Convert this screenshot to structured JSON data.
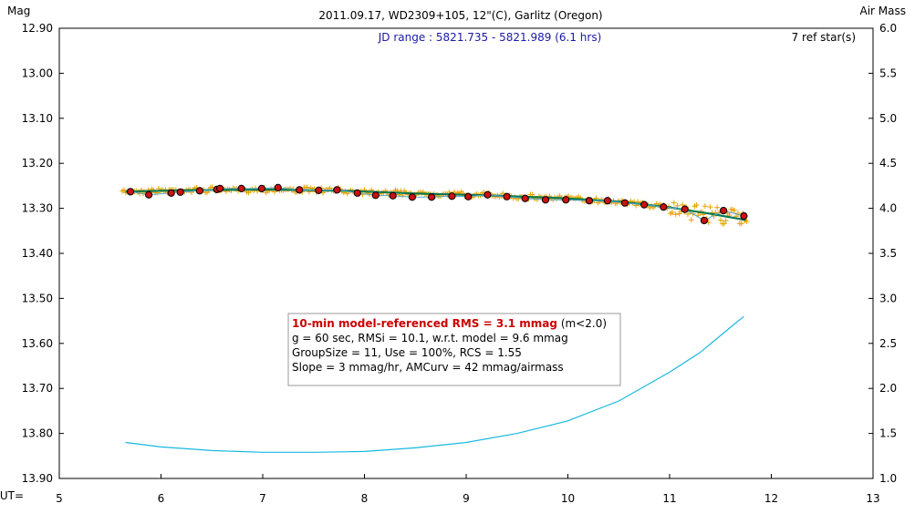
{
  "chart_data": {
    "type": "scatter",
    "title": "2011.09.17, WD2309+105, 12\"(C), Garlitz (Oregon)",
    "ylabel_left": "Mag",
    "ylabel_right": "Air Mass",
    "xlabel": "UT=",
    "jd_range": "JD range : 5821.735 - 5821.989 (6.1 hrs)",
    "ref_stars": "7 ref star(s)",
    "xlim": [
      5,
      13
    ],
    "ylim_mag": [
      12.9,
      13.9
    ],
    "ylim_airmass": [
      1.0,
      6.0
    ],
    "xticks": [
      "5",
      "6",
      "7",
      "8",
      "9",
      "10",
      "11",
      "12",
      "13"
    ],
    "yticks_left": [
      "12.90",
      "13.00",
      "13.10",
      "13.20",
      "13.30",
      "13.40",
      "13.50",
      "13.60",
      "13.70",
      "13.80",
      "13.90"
    ],
    "yticks_right": [
      "6.0",
      "5.5",
      "5.0",
      "4.5",
      "4.0",
      "3.5",
      "3.0",
      "2.5",
      "2.0",
      "1.5",
      "1.0"
    ],
    "grid": false,
    "annotation": {
      "line1_bold": "10-min model-referenced RMS = 3.1 mmag",
      "line1_rest": " (m<2.0)",
      "line2": "g = 60 sec, RMSi = 10.1, w.r.t. model = 9.6 mmag",
      "line3": "GroupSize = 11, Use = 100%, RCS = 1.55",
      "line4": "Slope = 3 mmag/hr, AMCurv = 42 mmag/airmass"
    },
    "colors": {
      "individual": "#e8a000",
      "group_fill": "#cc1111",
      "model": "#0a7a50",
      "fit": "#55aacc",
      "airmass": "#18b8e0",
      "rms_text": "#cc0000",
      "jd_text": "#1a1aa6"
    },
    "series": [
      {
        "type": "scatter",
        "x": [
          5.7,
          5.88,
          6.1,
          6.19,
          6.38,
          6.55,
          6.58,
          6.79,
          6.99,
          7.15,
          7.36,
          7.55,
          7.73,
          7.93,
          8.11,
          8.28,
          8.47,
          8.66,
          8.86,
          9.02,
          9.21,
          9.4,
          9.58,
          9.78,
          9.98,
          10.21,
          10.39,
          10.56,
          10.75,
          10.94,
          11.15,
          11.34,
          11.53,
          11.73
        ],
        "y": [
          13.263,
          13.27,
          13.266,
          13.264,
          13.261,
          13.258,
          13.256,
          13.256,
          13.256,
          13.254,
          13.259,
          13.26,
          13.259,
          13.266,
          13.271,
          13.272,
          13.275,
          13.275,
          13.273,
          13.274,
          13.27,
          13.274,
          13.278,
          13.281,
          13.281,
          13.283,
          13.283,
          13.288,
          13.292,
          13.297,
          13.302,
          13.327,
          13.305,
          13.317
        ]
      },
      {
        "type": "line",
        "x": [
          5.65,
          6.2,
          7.0,
          7.8,
          8.5,
          9.2,
          9.9,
          10.5,
          11.0,
          11.4,
          11.75
        ],
        "y": [
          13.263,
          13.26,
          13.258,
          13.261,
          13.267,
          13.271,
          13.277,
          13.285,
          13.298,
          13.312,
          13.326
        ]
      },
      {
        "type": "line",
        "x": [
          5.65,
          6.0,
          6.5,
          7.0,
          7.5,
          8.0,
          8.5,
          9.0,
          9.5,
          10.0,
          10.5,
          11.0,
          11.3,
          11.6,
          11.73
        ],
        "y": [
          1.4,
          1.35,
          1.31,
          1.29,
          1.29,
          1.3,
          1.34,
          1.4,
          1.5,
          1.64,
          1.86,
          2.18,
          2.4,
          2.68,
          2.8
        ]
      }
    ]
  }
}
